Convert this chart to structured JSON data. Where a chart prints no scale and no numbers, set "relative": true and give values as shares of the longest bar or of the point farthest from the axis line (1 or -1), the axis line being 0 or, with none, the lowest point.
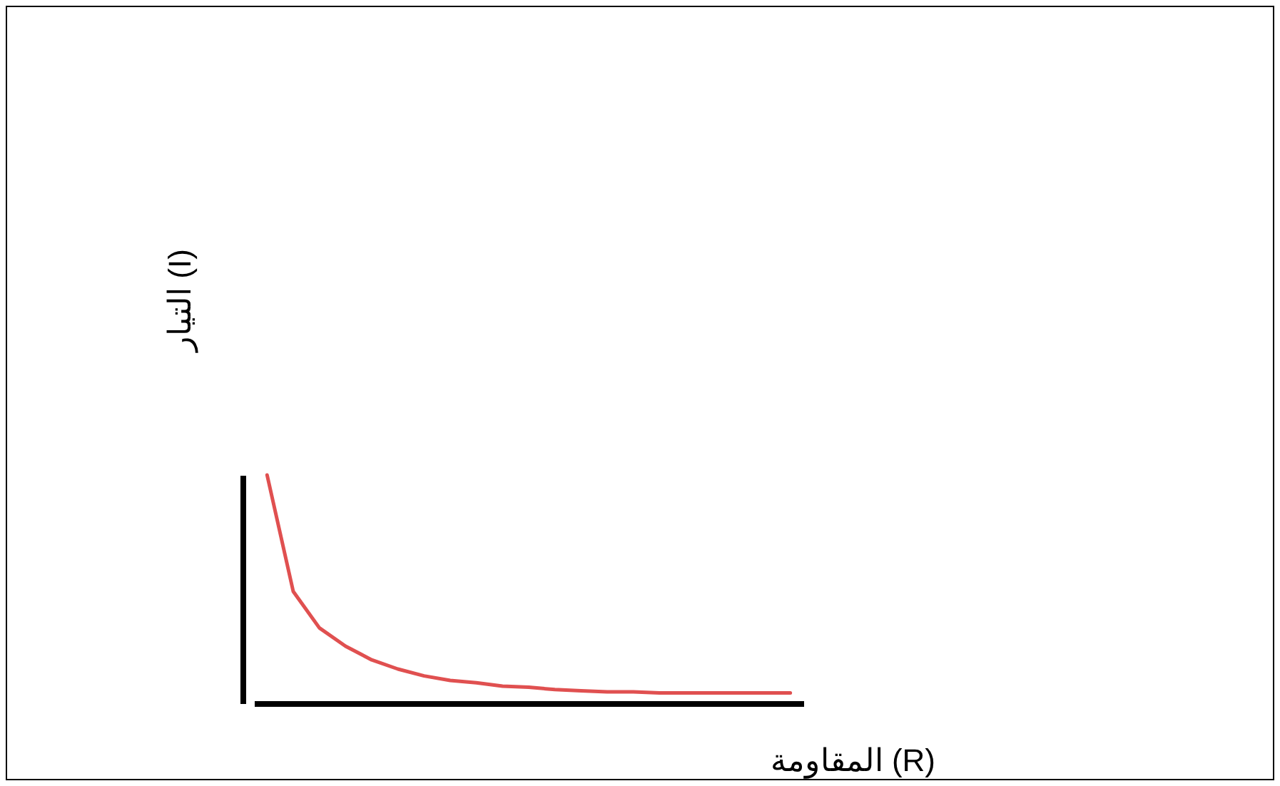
{
  "chart_data": {
    "type": "line",
    "xlabel": "المقاومة (R)",
    "ylabel": "التيار (I)",
    "relative": true,
    "categories": [
      null,
      null,
      null,
      null,
      null,
      null,
      null,
      null,
      null,
      null,
      null,
      null,
      null,
      null,
      null,
      null,
      null,
      null,
      null,
      null,
      null
    ],
    "series": [
      {
        "color": "#e05050",
        "values": [
          1,
          0.49,
          0.33,
          0.25,
          0.19,
          0.15,
          0.12,
          0.1,
          0.09,
          0.075,
          0.07,
          0.06,
          0.055,
          0.05,
          0.05,
          0.045,
          0.045,
          0.045,
          0.045,
          0.045,
          0.045
        ]
      }
    ]
  }
}
